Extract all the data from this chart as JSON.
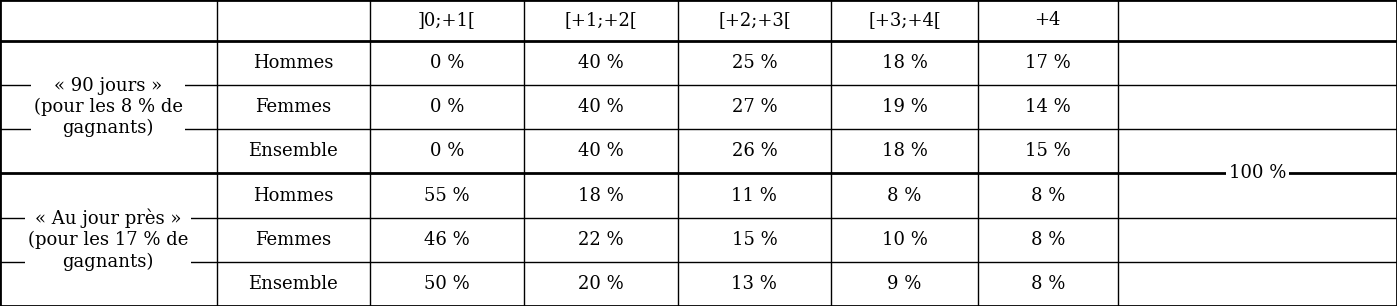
{
  "col_headers": [
    "",
    "",
    "]0;+1[",
    "[+1;+2[",
    "[+2;+3[",
    "[+3;+4[",
    "+4",
    ""
  ],
  "row_groups": [
    {
      "group_label": "« 90 jours »\n(pour les 8 % de\ngagnants)",
      "rows": [
        {
          "label": "Hommes",
          "values": [
            "0 %",
            "40 %",
            "25 %",
            "18 %",
            "17 %"
          ]
        },
        {
          "label": "Femmes",
          "values": [
            "0 %",
            "40 %",
            "27 %",
            "19 %",
            "14 %"
          ]
        },
        {
          "label": "Ensemble",
          "values": [
            "0 %",
            "40 %",
            "26 %",
            "18 %",
            "15 %"
          ]
        }
      ]
    },
    {
      "group_label": "« Au jour près »\n(pour les 17 % de\ngagnants)",
      "rows": [
        {
          "label": "Hommes",
          "values": [
            "55 %",
            "18 %",
            "11 %",
            "8 %",
            "8 %"
          ]
        },
        {
          "label": "Femmes",
          "values": [
            "46 %",
            "22 %",
            "15 %",
            "10 %",
            "8 %"
          ]
        },
        {
          "label": "Ensemble",
          "values": [
            "50 %",
            "20 %",
            "13 %",
            "9 %",
            "8 %"
          ]
        }
      ]
    }
  ],
  "last_col_label": "100 %",
  "background_color": "#ffffff",
  "border_color": "#000000",
  "font_size": 13,
  "font_family": "DejaVu Serif"
}
